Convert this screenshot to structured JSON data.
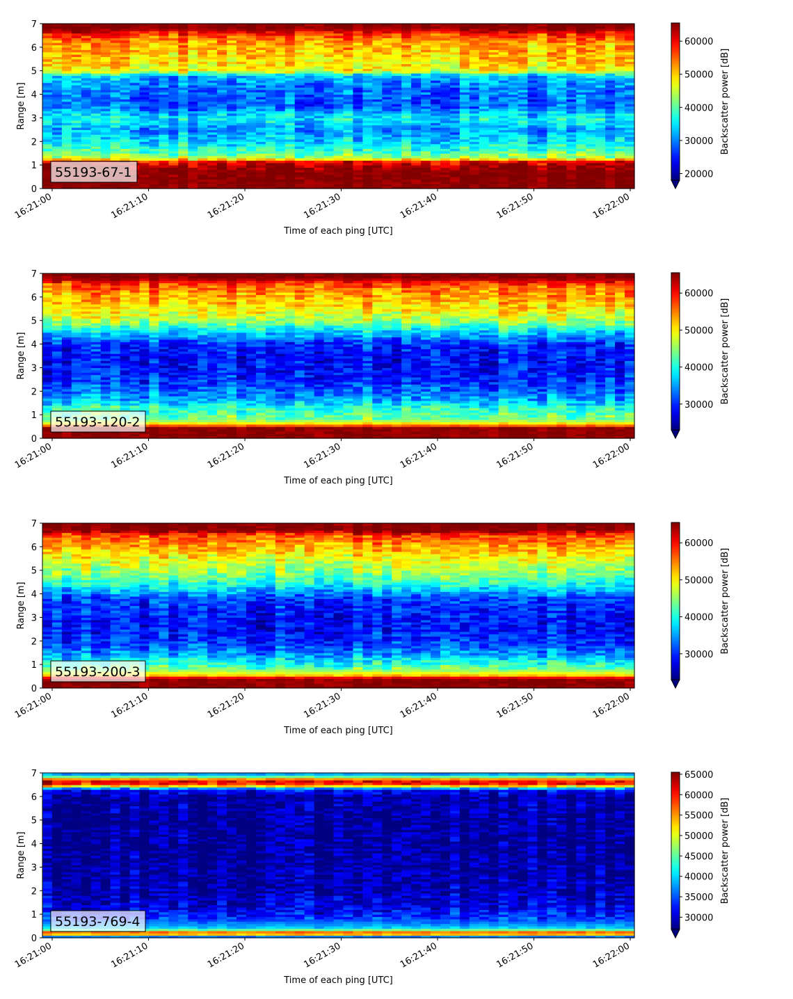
{
  "chart_data": [
    {
      "type": "heatmap",
      "label": "55193-67-1",
      "xlabel": "Time of each ping [UTC]",
      "ylabel": "Range [m]",
      "colorbar_label": "Backscatter power [dB]",
      "colormap": "jet",
      "x_range": [
        "16:21:00",
        "16:22:00"
      ],
      "x_ticks": [
        "16:21:00",
        "16:21:10",
        "16:21:20",
        "16:21:30",
        "16:21:40",
        "16:21:50",
        "16:22:00"
      ],
      "ylim": [
        0,
        7
      ],
      "y_ticks": [
        "0",
        "1",
        "2",
        "3",
        "4",
        "5",
        "6",
        "7"
      ],
      "vmin": 18000,
      "vmax": 65500,
      "cbar_ticks": [
        20000,
        30000,
        40000,
        50000,
        60000
      ],
      "profile": [
        {
          "r": 0.0,
          "v": 65000
        },
        {
          "r": 0.25,
          "v": 65000
        },
        {
          "r": 0.9,
          "v": 65000
        },
        {
          "r": 1.15,
          "v": 60000
        },
        {
          "r": 1.3,
          "v": 44000
        },
        {
          "r": 1.6,
          "v": 39000
        },
        {
          "r": 2.0,
          "v": 34000
        },
        {
          "r": 2.5,
          "v": 31000
        },
        {
          "r": 3.0,
          "v": 36000
        },
        {
          "r": 3.5,
          "v": 28000
        },
        {
          "r": 4.2,
          "v": 29000
        },
        {
          "r": 4.8,
          "v": 33000
        },
        {
          "r": 5.0,
          "v": 47000
        },
        {
          "r": 5.6,
          "v": 50000
        },
        {
          "r": 6.2,
          "v": 52000
        },
        {
          "r": 6.6,
          "v": 58000
        },
        {
          "r": 6.8,
          "v": 65000
        },
        {
          "r": 7.0,
          "v": 65000
        }
      ]
    },
    {
      "type": "heatmap",
      "label": "55193-120-2",
      "xlabel": "Time of each ping [UTC]",
      "ylabel": "Range [m]",
      "colorbar_label": "Backscatter power [dB]",
      "colormap": "jet",
      "x_range": [
        "16:21:00",
        "16:22:00"
      ],
      "x_ticks": [
        "16:21:00",
        "16:21:10",
        "16:21:20",
        "16:21:30",
        "16:21:40",
        "16:21:50",
        "16:22:00"
      ],
      "ylim": [
        0,
        7
      ],
      "y_ticks": [
        "0",
        "1",
        "2",
        "3",
        "4",
        "5",
        "6",
        "7"
      ],
      "vmin": 23000,
      "vmax": 65500,
      "cbar_ticks": [
        30000,
        40000,
        50000,
        60000
      ],
      "profile": [
        {
          "r": 0.0,
          "v": 65000
        },
        {
          "r": 0.45,
          "v": 65000
        },
        {
          "r": 0.6,
          "v": 52000
        },
        {
          "r": 0.8,
          "v": 44000
        },
        {
          "r": 1.3,
          "v": 41000
        },
        {
          "r": 1.6,
          "v": 36000
        },
        {
          "r": 2.0,
          "v": 33000
        },
        {
          "r": 2.5,
          "v": 30000
        },
        {
          "r": 3.0,
          "v": 29000
        },
        {
          "r": 3.5,
          "v": 28500
        },
        {
          "r": 4.0,
          "v": 30000
        },
        {
          "r": 4.5,
          "v": 37000
        },
        {
          "r": 5.0,
          "v": 46000
        },
        {
          "r": 5.6,
          "v": 51000
        },
        {
          "r": 6.2,
          "v": 54000
        },
        {
          "r": 6.6,
          "v": 58000
        },
        {
          "r": 6.8,
          "v": 65000
        },
        {
          "r": 7.0,
          "v": 65000
        }
      ]
    },
    {
      "type": "heatmap",
      "label": "55193-200-3",
      "xlabel": "Time of each ping [UTC]",
      "ylabel": "Range [m]",
      "colorbar_label": "Backscatter power [dB]",
      "colormap": "jet",
      "x_range": [
        "16:21:00",
        "16:22:00"
      ],
      "x_ticks": [
        "16:21:00",
        "16:21:10",
        "16:21:20",
        "16:21:30",
        "16:21:40",
        "16:21:50",
        "16:22:00"
      ],
      "ylim": [
        0,
        7
      ],
      "y_ticks": [
        "0",
        "1",
        "2",
        "3",
        "4",
        "5",
        "6",
        "7"
      ],
      "vmin": 23000,
      "vmax": 65500,
      "cbar_ticks": [
        30000,
        40000,
        50000,
        60000
      ],
      "profile": [
        {
          "r": 0.0,
          "v": 65000
        },
        {
          "r": 0.4,
          "v": 65000
        },
        {
          "r": 0.55,
          "v": 52000
        },
        {
          "r": 0.8,
          "v": 44000
        },
        {
          "r": 1.2,
          "v": 38000
        },
        {
          "r": 1.6,
          "v": 33000
        },
        {
          "r": 2.0,
          "v": 30000
        },
        {
          "r": 2.6,
          "v": 28500
        },
        {
          "r": 3.2,
          "v": 29000
        },
        {
          "r": 3.8,
          "v": 31000
        },
        {
          "r": 4.3,
          "v": 38000
        },
        {
          "r": 4.8,
          "v": 44000
        },
        {
          "r": 5.4,
          "v": 48000
        },
        {
          "r": 6.0,
          "v": 53000
        },
        {
          "r": 6.5,
          "v": 57000
        },
        {
          "r": 6.7,
          "v": 65000
        },
        {
          "r": 7.0,
          "v": 65000
        }
      ]
    },
    {
      "type": "heatmap",
      "label": "55193-769-4",
      "xlabel": "Time of each ping [UTC]",
      "ylabel": "Range [m]",
      "colorbar_label": "Backscatter power [dB]",
      "colormap": "jet",
      "x_range": [
        "16:21:00",
        "16:22:00"
      ],
      "x_ticks": [
        "16:21:00",
        "16:21:10",
        "16:21:20",
        "16:21:30",
        "16:21:40",
        "16:21:50",
        "16:22:00"
      ],
      "ylim": [
        0,
        7
      ],
      "y_ticks": [
        "0",
        "1",
        "2",
        "3",
        "4",
        "5",
        "6",
        "7"
      ],
      "vmin": 27000,
      "vmax": 65500,
      "cbar_ticks": [
        30000,
        35000,
        40000,
        45000,
        50000,
        55000,
        60000,
        65000
      ],
      "profile": [
        {
          "r": 0.0,
          "v": 28000
        },
        {
          "r": 0.2,
          "v": 62000
        },
        {
          "r": 0.3,
          "v": 50000
        },
        {
          "r": 0.4,
          "v": 40000
        },
        {
          "r": 0.8,
          "v": 34000
        },
        {
          "r": 1.2,
          "v": 31000
        },
        {
          "r": 2.0,
          "v": 29000
        },
        {
          "r": 4.0,
          "v": 28000
        },
        {
          "r": 6.0,
          "v": 28500
        },
        {
          "r": 6.3,
          "v": 32000
        },
        {
          "r": 6.45,
          "v": 52000
        },
        {
          "r": 6.6,
          "v": 64000
        },
        {
          "r": 6.75,
          "v": 55000
        },
        {
          "r": 6.9,
          "v": 40000
        },
        {
          "r": 7.0,
          "v": 36000
        }
      ]
    }
  ]
}
